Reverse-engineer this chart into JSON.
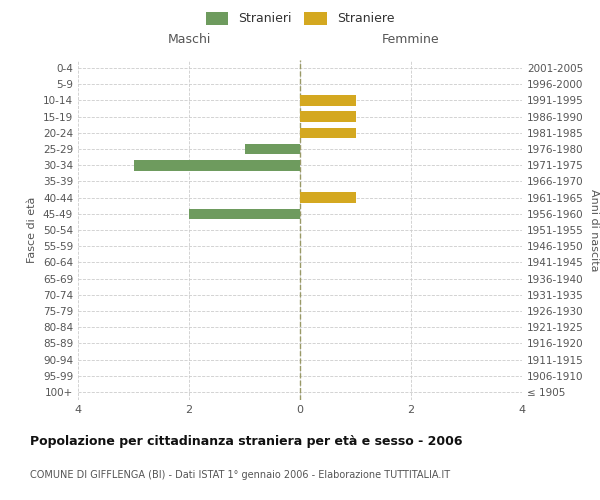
{
  "age_groups": [
    "100+",
    "95-99",
    "90-94",
    "85-89",
    "80-84",
    "75-79",
    "70-74",
    "65-69",
    "60-64",
    "55-59",
    "50-54",
    "45-49",
    "40-44",
    "35-39",
    "30-34",
    "25-29",
    "20-24",
    "15-19",
    "10-14",
    "5-9",
    "0-4"
  ],
  "birth_years": [
    "≤ 1905",
    "1906-1910",
    "1911-1915",
    "1916-1920",
    "1921-1925",
    "1926-1930",
    "1931-1935",
    "1936-1940",
    "1941-1945",
    "1946-1950",
    "1951-1955",
    "1956-1960",
    "1961-1965",
    "1966-1970",
    "1971-1975",
    "1976-1980",
    "1981-1985",
    "1986-1990",
    "1991-1995",
    "1996-2000",
    "2001-2005"
  ],
  "males": [
    0,
    0,
    0,
    0,
    0,
    0,
    0,
    0,
    0,
    0,
    0,
    -2,
    0,
    0,
    -3,
    -1,
    0,
    0,
    0,
    0,
    0
  ],
  "females": [
    0,
    0,
    0,
    0,
    0,
    0,
    0,
    0,
    0,
    0,
    0,
    0,
    1,
    0,
    0,
    0,
    1,
    1,
    1,
    0,
    0
  ],
  "male_color": "#6e9b5e",
  "female_color": "#d4a820",
  "xlim": [
    -4,
    4
  ],
  "left_label": "Maschi",
  "right_label": "Femmine",
  "left_ylabel": "Fasce di età",
  "right_ylabel": "Anni di nascita",
  "legend_male": "Stranieri",
  "legend_female": "Straniere",
  "title": "Popolazione per cittadinanza straniera per età e sesso - 2006",
  "subtitle": "COMUNE DI GIFFLENGA (BI) - Dati ISTAT 1° gennaio 2006 - Elaborazione TUTTITALIA.IT",
  "bg_color": "#ffffff",
  "grid_color": "#cccccc",
  "center_line_color": "#aaaaaa",
  "tick_color": "#999999"
}
